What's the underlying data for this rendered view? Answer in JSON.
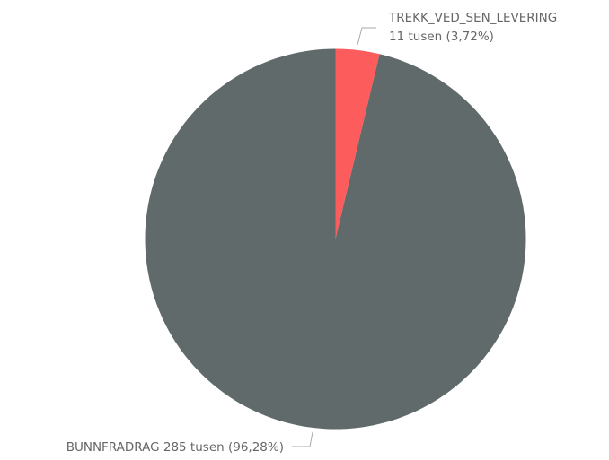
{
  "chart_data": {
    "type": "pie",
    "start_angle": "top, clockwise",
    "slices": [
      {
        "name": "TREKK_VED_SEN_LEVERING",
        "value_label": "11 tusen",
        "percent": 3.72,
        "percent_label": "(3,72%)",
        "color": "#fd5c5c"
      },
      {
        "name": "BUNNFRADRAG",
        "value_label": "285 tusen",
        "percent": 96.28,
        "percent_label": "(96,28%)",
        "color": "#606a6a"
      }
    ]
  }
}
